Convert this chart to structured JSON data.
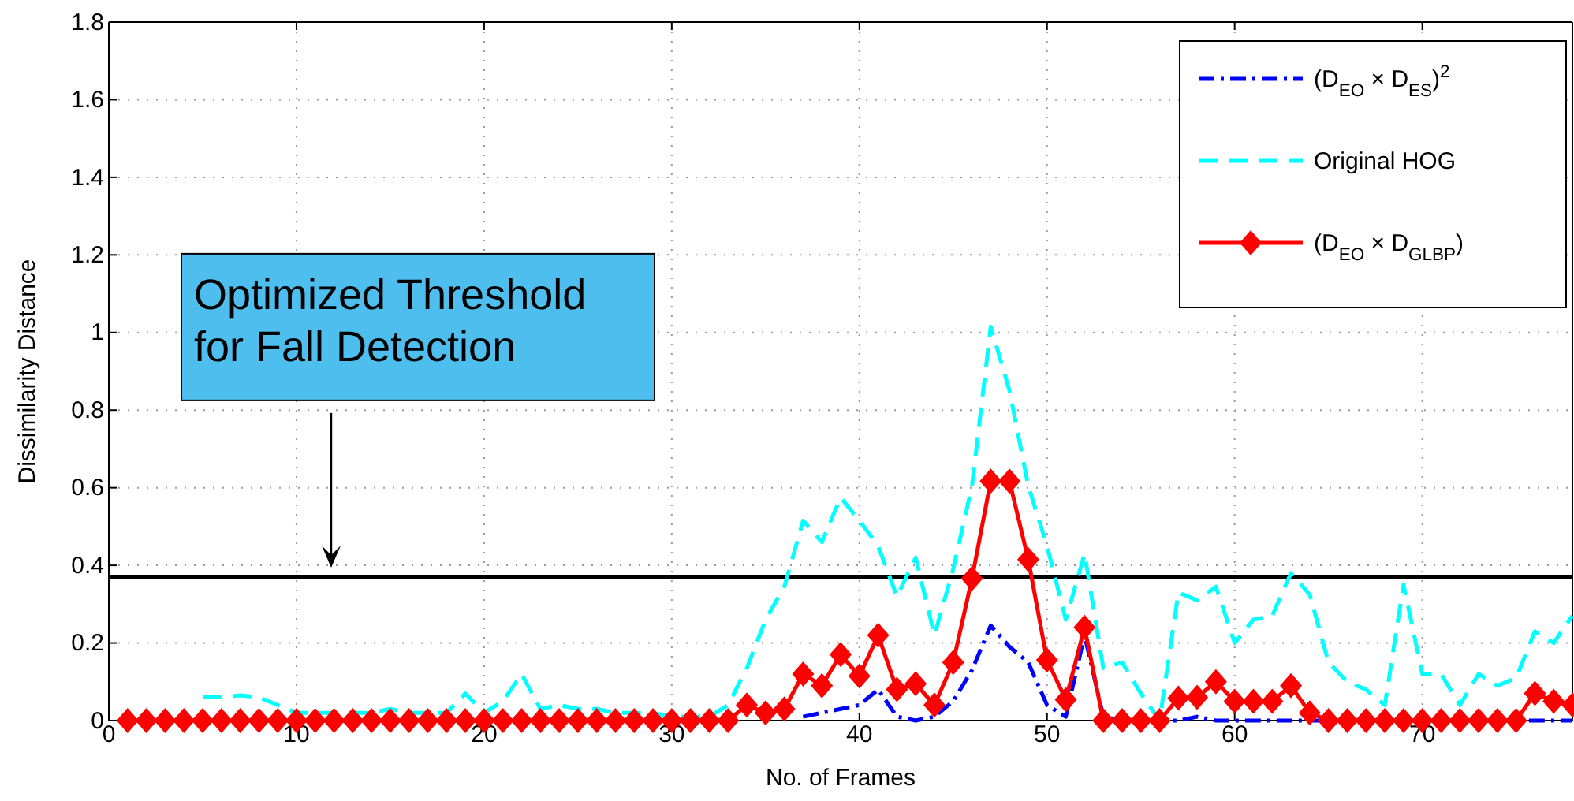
{
  "chart_data": {
    "type": "line",
    "xlabel": "No. of Frames",
    "ylabel": "Dissimilarity Distance",
    "x": [
      1,
      2,
      3,
      4,
      5,
      6,
      7,
      8,
      9,
      10,
      11,
      12,
      13,
      14,
      15,
      16,
      17,
      18,
      19,
      20,
      21,
      22,
      23,
      24,
      25,
      26,
      27,
      28,
      29,
      30,
      31,
      32,
      33,
      34,
      35,
      36,
      37,
      38,
      39,
      40,
      41,
      42,
      43,
      44,
      45,
      46,
      47,
      48,
      49,
      50,
      51,
      52,
      53,
      54,
      55,
      56,
      57,
      58,
      59,
      60,
      61,
      62,
      63,
      64,
      65,
      66,
      67,
      68,
      69,
      70,
      71,
      72,
      73,
      74,
      75,
      76,
      77,
      78
    ],
    "series": [
      {
        "name": "(D$_{EO}$ × D$_{ES}$)$^{2}$",
        "color": "#0000ff",
        "line_style": "dashdot",
        "marker": "none",
        "values": [
          null,
          null,
          null,
          null,
          null,
          null,
          null,
          null,
          null,
          null,
          null,
          null,
          null,
          null,
          null,
          null,
          null,
          null,
          null,
          null,
          null,
          null,
          null,
          null,
          null,
          null,
          null,
          null,
          null,
          null,
          null,
          null,
          null,
          null,
          null,
          null,
          0.01,
          0.02,
          0.03,
          0.04,
          0.08,
          0.01,
          0,
          0.01,
          0.05,
          0.13,
          0.245,
          0.19,
          0.15,
          0.04,
          0.01,
          0.22,
          0.01,
          0,
          0,
          0,
          0,
          0.01,
          0,
          0,
          0,
          0,
          0,
          0,
          0,
          0,
          0,
          0,
          0,
          0,
          0,
          0,
          0,
          0,
          0,
          0,
          0,
          0
        ]
      },
      {
        "name": "Original HOG",
        "color": "#00ffff",
        "line_style": "dashed",
        "marker": "none",
        "values": [
          null,
          null,
          null,
          null,
          0.06,
          0.06,
          0.065,
          0.06,
          0.04,
          0.02,
          0.02,
          0.02,
          0.02,
          0.02,
          0.03,
          0.02,
          0.02,
          0.02,
          0.07,
          0.02,
          0.05,
          0.12,
          0.03,
          0.04,
          0.03,
          0.03,
          0.02,
          0.02,
          0.02,
          0.01,
          0.01,
          0.01,
          0.04,
          0.135,
          0.26,
          0.345,
          0.515,
          0.46,
          0.575,
          0.515,
          0.45,
          0.32,
          0.42,
          0.22,
          0.39,
          0.605,
          1.015,
          0.85,
          0.605,
          0.45,
          0.26,
          0.43,
          0.135,
          0.15,
          0.07,
          0,
          0.33,
          0.31,
          0.345,
          0.2,
          0.26,
          0.27,
          0.38,
          0.325,
          0.15,
          0.1,
          0.08,
          0.04,
          0.35,
          0.12,
          0.12,
          0.04,
          0.12,
          0.09,
          0.11,
          0.23,
          0.2,
          0.27
        ]
      },
      {
        "name": "(D$_{EO}$ × D$_{GLBP}$)",
        "color": "#ff0000",
        "line_style": "solid",
        "marker": "diamond",
        "values": [
          0,
          0,
          0,
          0,
          0,
          0,
          0,
          0,
          0,
          0,
          0,
          0,
          0,
          0,
          0,
          0,
          0,
          0,
          0,
          0,
          0,
          0,
          0,
          0,
          0,
          0,
          0,
          0,
          0,
          0,
          0,
          0,
          0,
          0.04,
          0.02,
          0.03,
          0.12,
          0.09,
          0.17,
          0.115,
          0.22,
          0.08,
          0.095,
          0.04,
          0.15,
          0.366,
          0.617,
          0.617,
          0.415,
          0.156,
          0.054,
          0.24,
          0,
          0,
          0,
          0,
          0.058,
          0.06,
          0.1,
          0.05,
          0.05,
          0.05,
          0.09,
          0.02,
          0,
          0,
          0,
          0,
          0,
          0,
          0,
          0,
          0,
          0,
          0,
          0.07,
          0.05,
          0.04
        ]
      }
    ],
    "xlim": [
      0,
      78
    ],
    "xticks": [
      0,
      10,
      20,
      30,
      40,
      50,
      60,
      70
    ],
    "ylim": [
      0,
      1.8
    ],
    "yticks": [
      0,
      0.2,
      0.4,
      0.6,
      0.8,
      1,
      1.2,
      1.4,
      1.6,
      1.8
    ],
    "grid": true,
    "legend": "top right",
    "ref_lines": [
      {
        "axis": "y",
        "value": 0.37,
        "color": "#000000",
        "line_style": "solid"
      }
    ],
    "annotations": [
      "Optimized Threshold\nfor Fall Detection"
    ]
  }
}
